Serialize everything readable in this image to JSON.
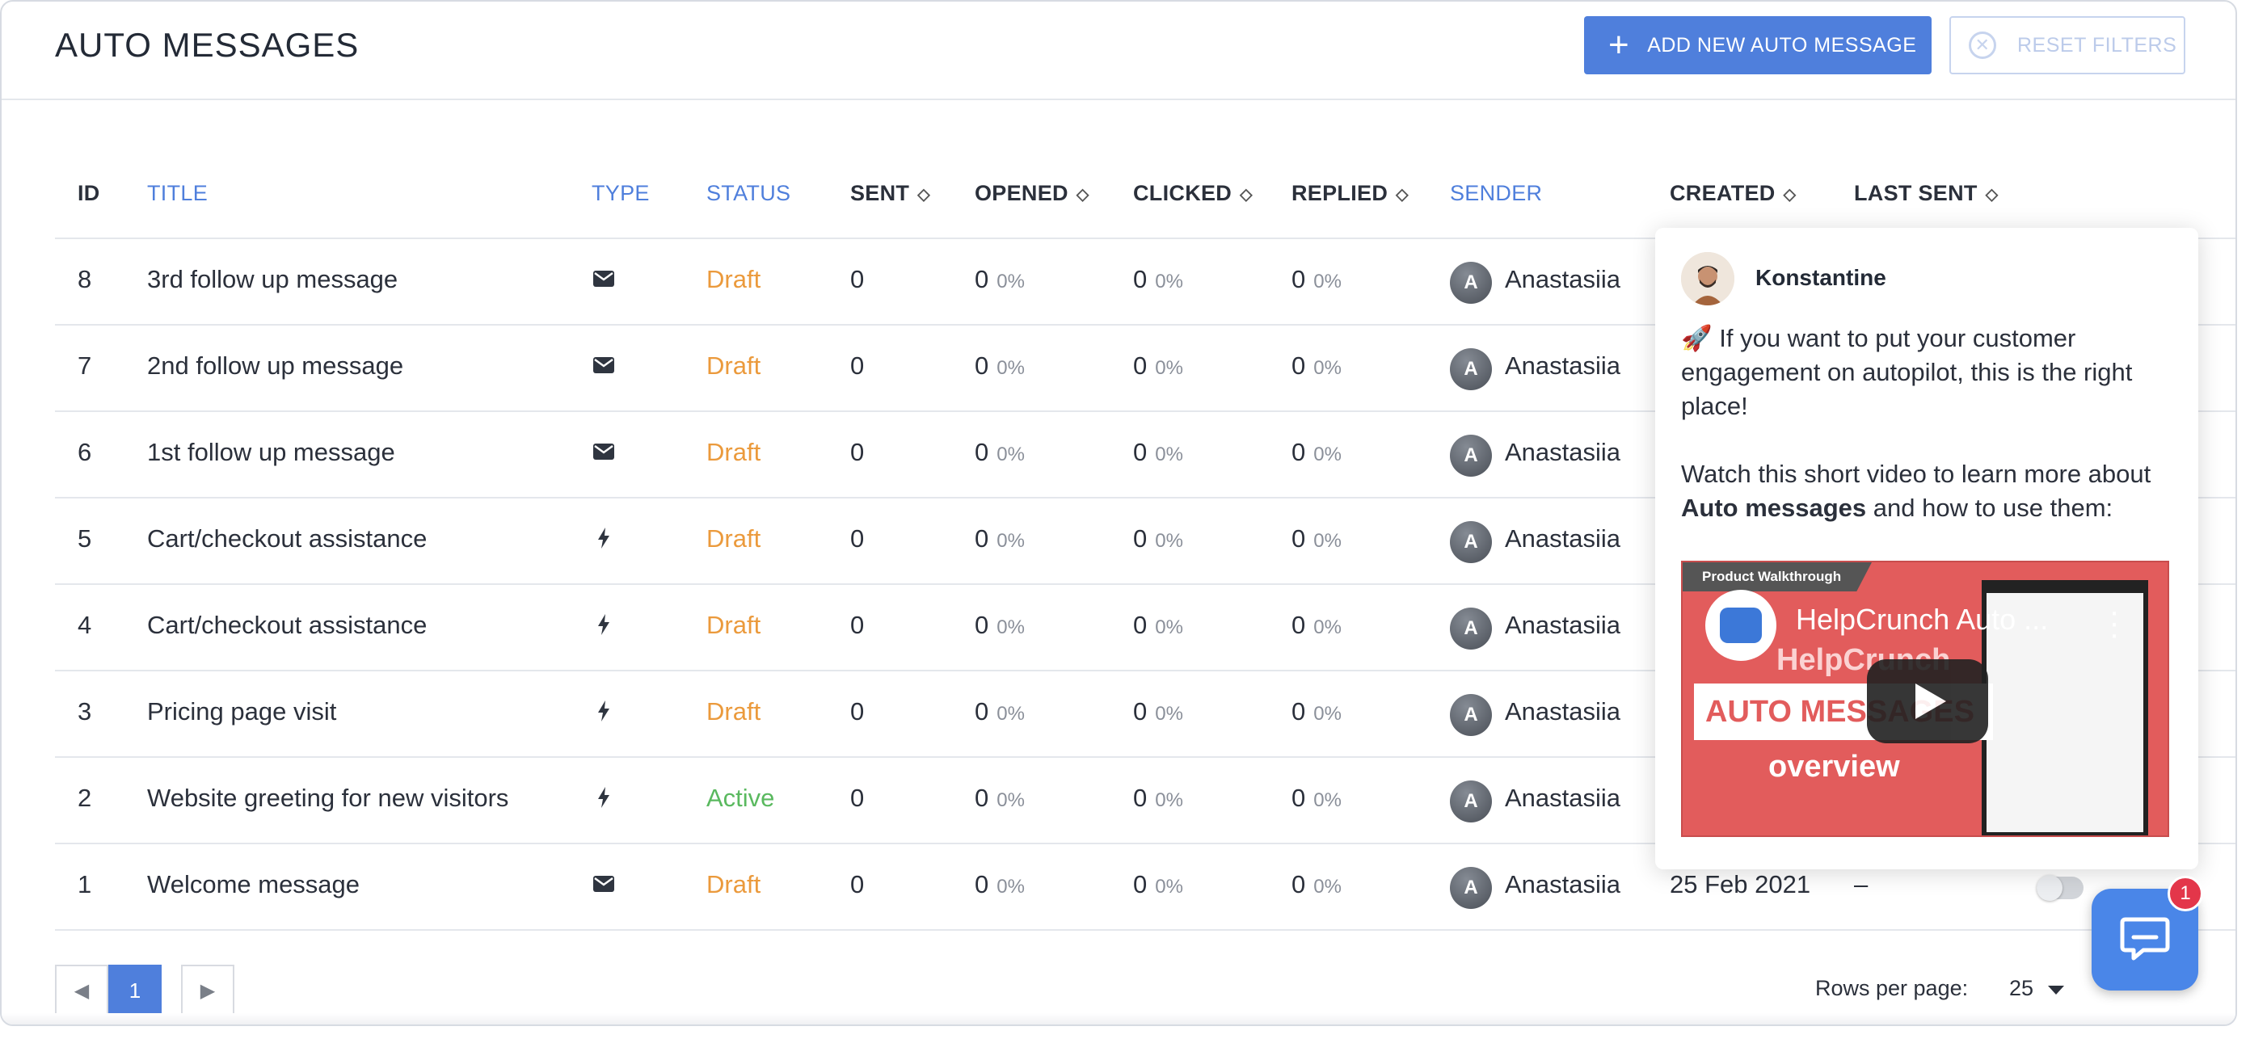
{
  "header": {
    "title": "AUTO MESSAGES",
    "add_button": "ADD NEW AUTO MESSAGE",
    "reset_button": "RESET FILTERS"
  },
  "columns": {
    "id": "ID",
    "title": "TITLE",
    "type": "TYPE",
    "status": "STATUS",
    "sent": "SENT",
    "opened": "OPENED",
    "clicked": "CLICKED",
    "replied": "REPLIED",
    "sender": "SENDER",
    "created": "CREATED",
    "last_sent": "LAST SENT"
  },
  "rows": [
    {
      "id": "8",
      "title": "3rd follow up message",
      "type": "email",
      "status": "Draft",
      "sent": "0",
      "opened": "0",
      "opened_pct": "0%",
      "clicked": "0",
      "clicked_pct": "0%",
      "replied": "0",
      "replied_pct": "0%",
      "avatar": "A",
      "sender": "Anastasiia"
    },
    {
      "id": "7",
      "title": "2nd follow up message",
      "type": "email",
      "status": "Draft",
      "sent": "0",
      "opened": "0",
      "opened_pct": "0%",
      "clicked": "0",
      "clicked_pct": "0%",
      "replied": "0",
      "replied_pct": "0%",
      "avatar": "A",
      "sender": "Anastasiia"
    },
    {
      "id": "6",
      "title": "1st follow up message",
      "type": "email",
      "status": "Draft",
      "sent": "0",
      "opened": "0",
      "opened_pct": "0%",
      "clicked": "0",
      "clicked_pct": "0%",
      "replied": "0",
      "replied_pct": "0%",
      "avatar": "A",
      "sender": "Anastasiia"
    },
    {
      "id": "5",
      "title": "Cart/checkout assistance",
      "type": "trigger",
      "status": "Draft",
      "sent": "0",
      "opened": "0",
      "opened_pct": "0%",
      "clicked": "0",
      "clicked_pct": "0%",
      "replied": "0",
      "replied_pct": "0%",
      "avatar": "A",
      "sender": "Anastasiia"
    },
    {
      "id": "4",
      "title": "Cart/checkout assistance",
      "type": "trigger",
      "status": "Draft",
      "sent": "0",
      "opened": "0",
      "opened_pct": "0%",
      "clicked": "0",
      "clicked_pct": "0%",
      "replied": "0",
      "replied_pct": "0%",
      "avatar": "A",
      "sender": "Anastasiia"
    },
    {
      "id": "3",
      "title": "Pricing page visit",
      "type": "trigger",
      "status": "Draft",
      "sent": "0",
      "opened": "0",
      "opened_pct": "0%",
      "clicked": "0",
      "clicked_pct": "0%",
      "replied": "0",
      "replied_pct": "0%",
      "avatar": "A",
      "sender": "Anastasiia"
    },
    {
      "id": "2",
      "title": "Website greeting for new visitors",
      "type": "trigger",
      "status": "Active",
      "sent": "0",
      "opened": "0",
      "opened_pct": "0%",
      "clicked": "0",
      "clicked_pct": "0%",
      "replied": "0",
      "replied_pct": "0%",
      "avatar": "A",
      "sender": "Anastasiia"
    },
    {
      "id": "1",
      "title": "Welcome message",
      "type": "email",
      "status": "Draft",
      "sent": "0",
      "opened": "0",
      "opened_pct": "0%",
      "clicked": "0",
      "clicked_pct": "0%",
      "replied": "0",
      "replied_pct": "0%",
      "avatar": "A",
      "sender": "Anastasiia",
      "created": "25 Feb 2021",
      "last_sent": "–",
      "toggle": "off"
    }
  ],
  "pagination": {
    "page": "1",
    "rows_per_page_label": "Rows per page:",
    "rows_per_page": "25"
  },
  "popup": {
    "agent_name": "Konstantine",
    "emoji": "🚀",
    "message_1": "If you want to put your customer engagement on autopilot, this is the right place!",
    "message_2_pre": "Watch this short video to learn more about",
    "message_2_bold": "Auto messages",
    "message_2_post": "and how to use them:",
    "video": {
      "ribbon": "Product Walkthrough",
      "title": "HelpCrunch Auto ...",
      "brand": "HelpCrunch",
      "headline": "AUTO MESSAGES",
      "subline": "overview"
    }
  },
  "chat_widget": {
    "badge": "1"
  },
  "colors": {
    "accent": "#4f7fdc",
    "draft": "#eb9a3c",
    "active": "#5ab95f",
    "badge": "#e3364a"
  }
}
